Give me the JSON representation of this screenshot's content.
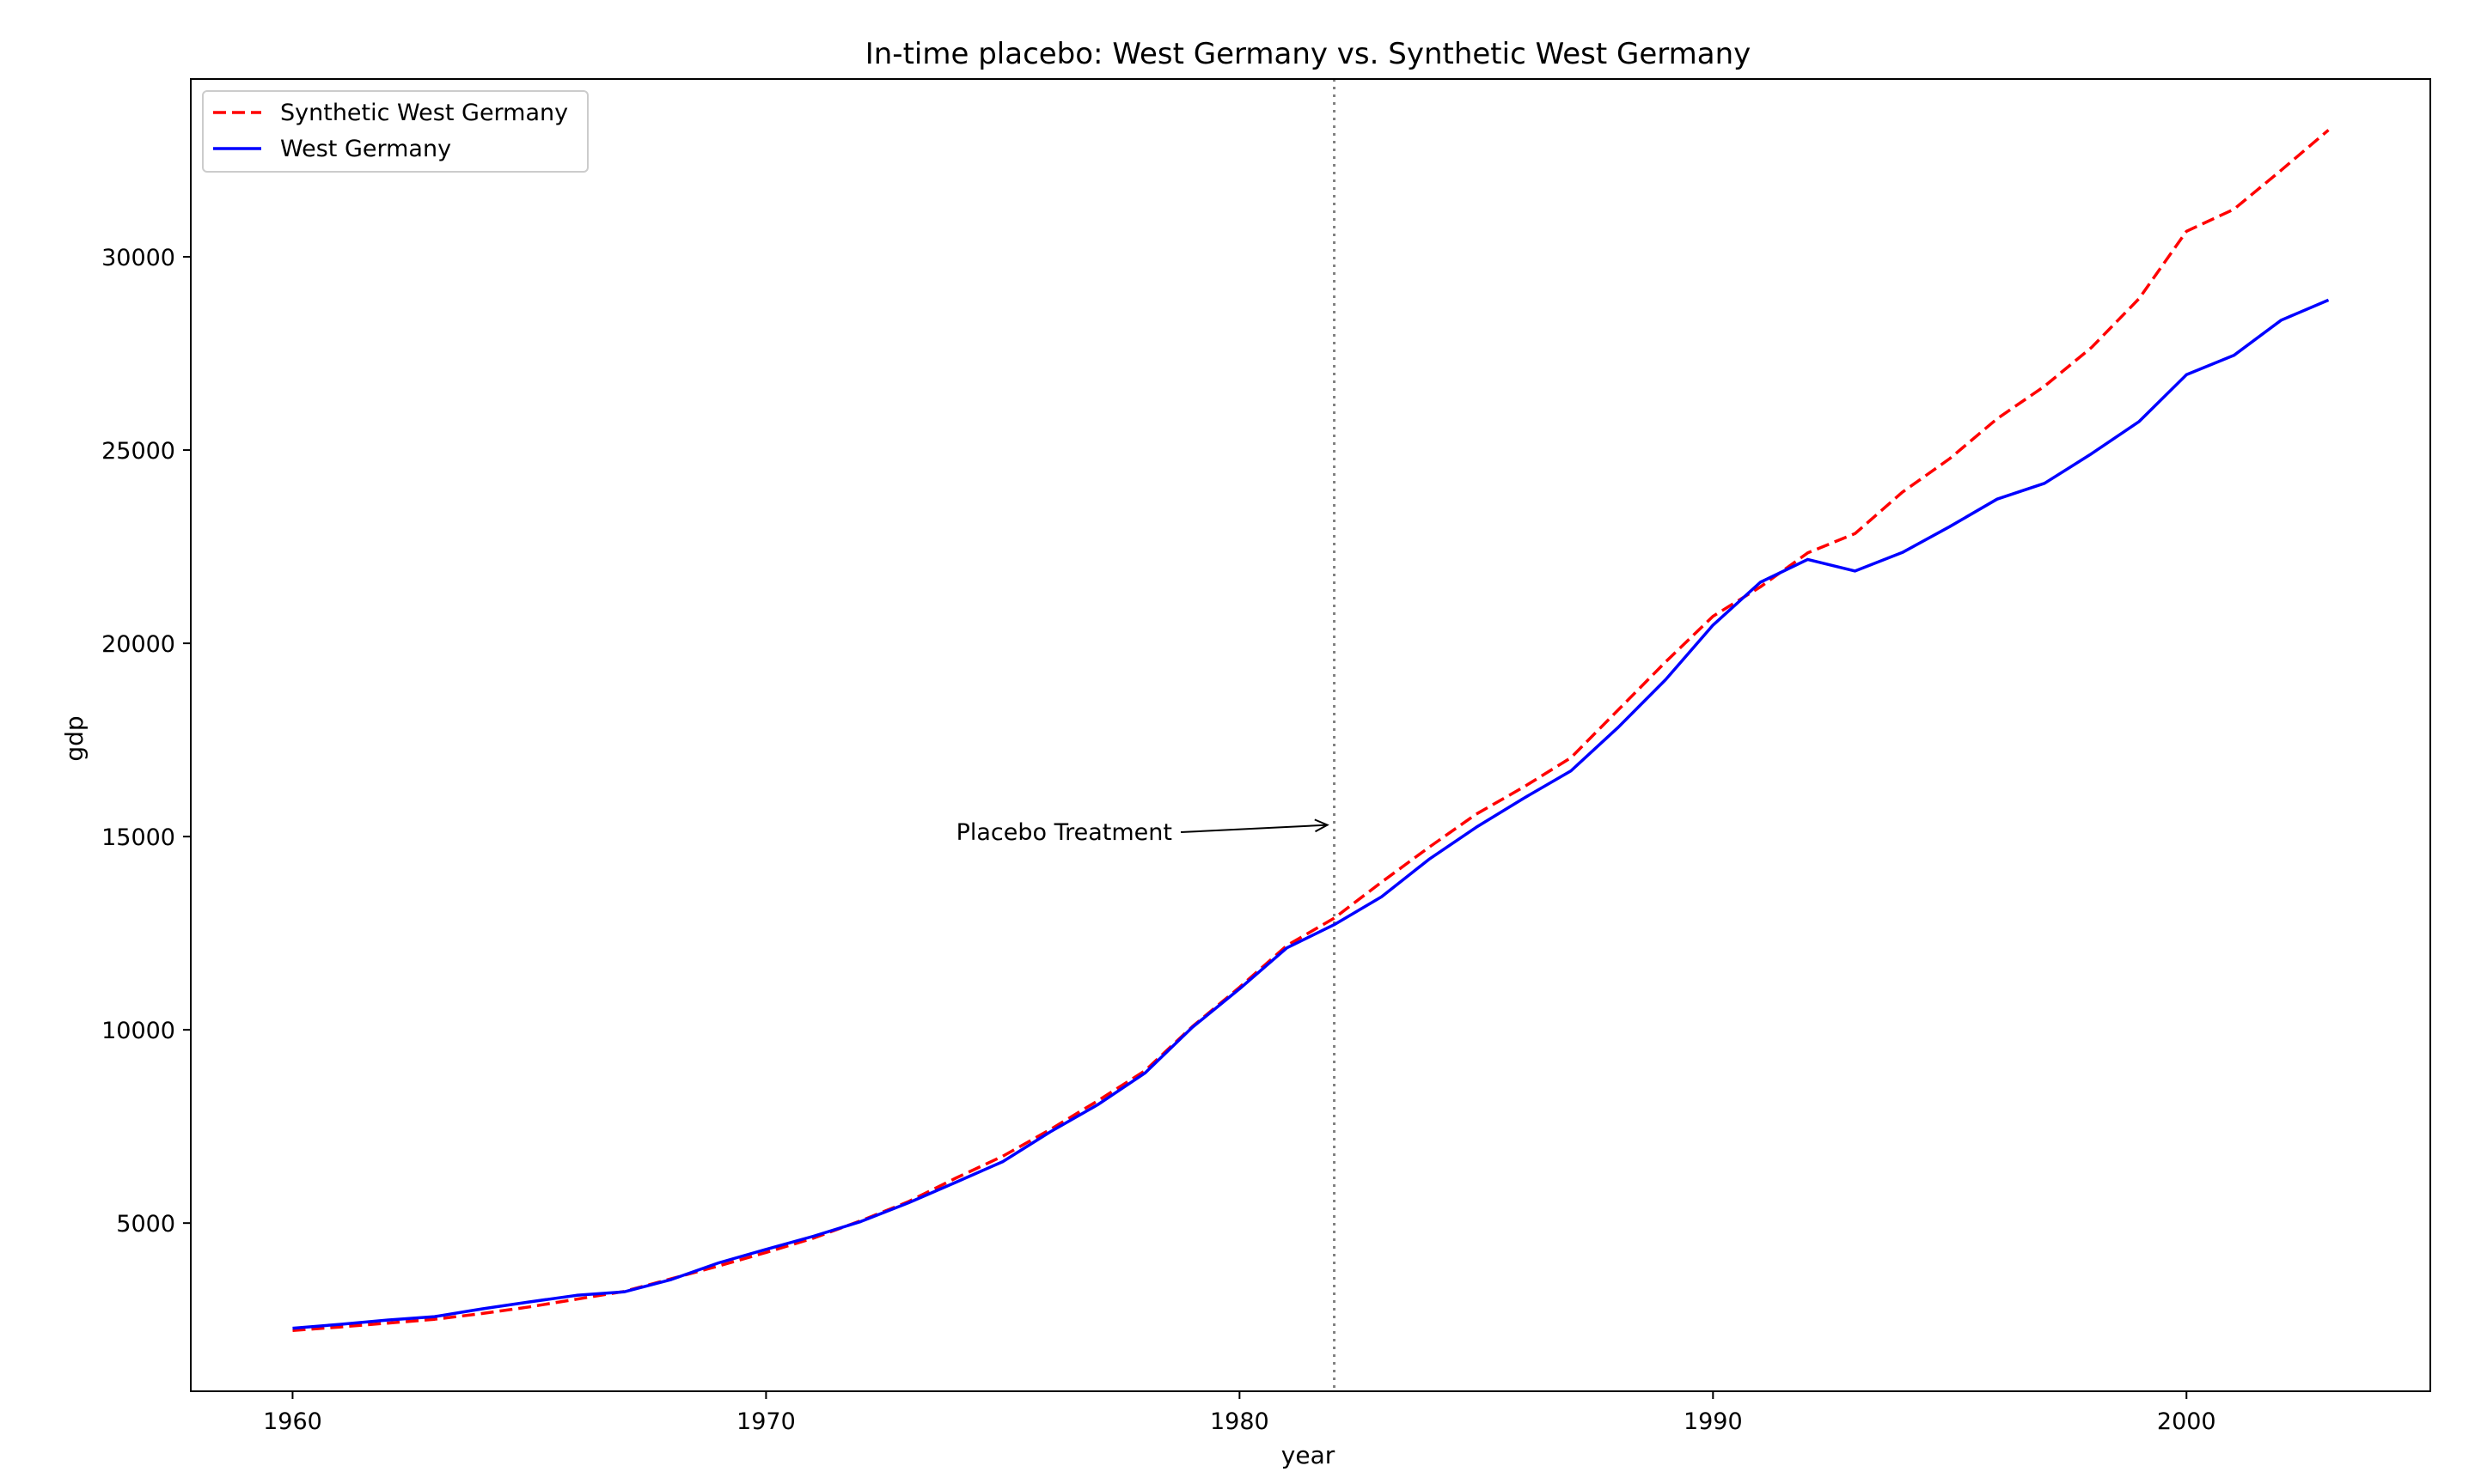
{
  "chart_data": {
    "type": "line",
    "title": "In-time placebo: West Germany vs. Synthetic West Germany",
    "xlabel": "year",
    "ylabel": "gdp",
    "xlim": [
      1957.85,
      2005.15
    ],
    "ylim": [
      649,
      34600
    ],
    "xticks": [
      1960,
      1970,
      1980,
      1990,
      2000
    ],
    "yticks": [
      5000,
      10000,
      15000,
      20000,
      25000,
      30000
    ],
    "grid": false,
    "legend_position": "upper-left",
    "x": [
      1960,
      1961,
      1962,
      1963,
      1964,
      1965,
      1966,
      1967,
      1968,
      1969,
      1970,
      1971,
      1972,
      1973,
      1974,
      1975,
      1976,
      1977,
      1978,
      1979,
      1980,
      1981,
      1982,
      1983,
      1984,
      1985,
      1986,
      1987,
      1988,
      1989,
      1990,
      1991,
      1992,
      1993,
      1994,
      1995,
      1996,
      1997,
      1998,
      1999,
      2000,
      2001,
      2002,
      2003
    ],
    "series": [
      {
        "name": "Synthetic West Germany",
        "color": "#ff0000",
        "dash": "dashed",
        "values": [
          2220,
          2310,
          2410,
          2510,
          2660,
          2830,
          3030,
          3230,
          3560,
          3890,
          4240,
          4610,
          5060,
          5550,
          6160,
          6730,
          7420,
          8160,
          8940,
          10080,
          11100,
          12180,
          12890,
          13820,
          14720,
          15580,
          16280,
          17040,
          18280,
          19520,
          20700,
          21460,
          22340,
          22840,
          23910,
          24780,
          25810,
          26650,
          27660,
          28920,
          30660,
          31230,
          32240,
          33280
        ]
      },
      {
        "name": "West Germany",
        "color": "#0000ff",
        "dash": "solid",
        "values": [
          2280,
          2380,
          2490,
          2580,
          2780,
          2960,
          3130,
          3220,
          3540,
          3970,
          4320,
          4660,
          5040,
          5520,
          6050,
          6590,
          7360,
          8060,
          8880,
          10060,
          11060,
          12120,
          12720,
          13440,
          14410,
          15240,
          15990,
          16700,
          17830,
          19060,
          20470,
          21580,
          22170,
          21870,
          22350,
          23020,
          23730,
          24140,
          24910,
          25740,
          26950,
          27450,
          28360,
          28880
        ]
      }
    ],
    "annotations": [
      {
        "text": "Placebo Treatment",
        "arrow_to": [
          1982,
          15300
        ]
      }
    ],
    "vlines": [
      {
        "x": 1982,
        "style": "dotted",
        "color": "#808080"
      }
    ]
  }
}
